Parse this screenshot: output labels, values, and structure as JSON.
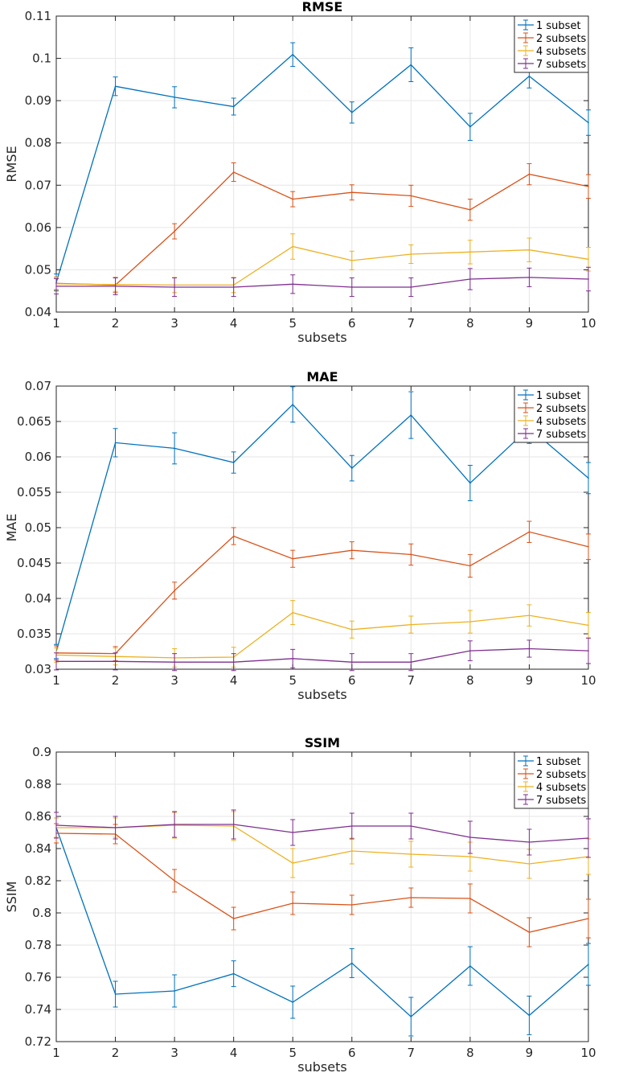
{
  "colors": {
    "series": [
      "#0072BD",
      "#D95319",
      "#EDB120",
      "#7E2F8E"
    ],
    "axis": "#262626",
    "grid": "#e6e6e6"
  },
  "chart_data": [
    {
      "type": "line",
      "title": "RMSE",
      "xlabel": "subsets",
      "ylabel": "RMSE",
      "x": [
        1,
        2,
        3,
        4,
        5,
        6,
        7,
        8,
        9,
        10
      ],
      "xlim": [
        1,
        10
      ],
      "ylim": [
        0.04,
        0.11
      ],
      "yticks": [
        0.04,
        0.05,
        0.06,
        0.07,
        0.08,
        0.09,
        0.1,
        0.11
      ],
      "ytick_labels": [
        "0.04",
        "0.05",
        "0.06",
        "0.07",
        "0.08",
        "0.09",
        "0.1",
        "0.11"
      ],
      "grid": true,
      "legend": "top-right",
      "series": [
        {
          "name": "1 subset",
          "values": [
            0.047,
            0.0934,
            0.0908,
            0.0886,
            0.1009,
            0.0872,
            0.0985,
            0.0838,
            0.0958,
            0.0848
          ],
          "errors": [
            0.002,
            0.0022,
            0.0025,
            0.002,
            0.0028,
            0.0025,
            0.004,
            0.0032,
            0.0028,
            0.003
          ]
        },
        {
          "name": "2 subsets",
          "values": [
            0.0468,
            0.0464,
            0.0591,
            0.0731,
            0.0667,
            0.0683,
            0.0675,
            0.0642,
            0.0726,
            0.0697
          ],
          "errors": [
            0.0015,
            0.0018,
            0.0018,
            0.0022,
            0.0018,
            0.0018,
            0.0025,
            0.0025,
            0.0025,
            0.0028
          ]
        },
        {
          "name": "4 subsets",
          "values": [
            0.0467,
            0.0465,
            0.0464,
            0.0464,
            0.0555,
            0.0522,
            0.0537,
            0.0542,
            0.0547,
            0.0525
          ],
          "errors": [
            0.0015,
            0.0016,
            0.0018,
            0.0018,
            0.003,
            0.0022,
            0.0022,
            0.0028,
            0.0028,
            0.0028
          ]
        },
        {
          "name": "7 subsets",
          "values": [
            0.0461,
            0.0461,
            0.0459,
            0.0459,
            0.0466,
            0.0459,
            0.0459,
            0.0478,
            0.0482,
            0.0478
          ],
          "errors": [
            0.0018,
            0.002,
            0.0022,
            0.0022,
            0.0022,
            0.0022,
            0.0022,
            0.0025,
            0.0022,
            0.0028
          ]
        }
      ]
    },
    {
      "type": "line",
      "title": "MAE",
      "xlabel": "subsets",
      "ylabel": "MAE",
      "x": [
        1,
        2,
        3,
        4,
        5,
        6,
        7,
        8,
        9,
        10
      ],
      "xlim": [
        1,
        10
      ],
      "ylim": [
        0.03,
        0.07
      ],
      "yticks": [
        0.03,
        0.035,
        0.04,
        0.045,
        0.05,
        0.055,
        0.06,
        0.065,
        0.07
      ],
      "ytick_labels": [
        "0.03",
        "0.035",
        "0.04",
        "0.045",
        "0.05",
        "0.055",
        "0.06",
        "0.065",
        "0.07"
      ],
      "grid": true,
      "legend": "top-right",
      "series": [
        {
          "name": "1 subset",
          "values": [
            0.0325,
            0.062,
            0.0612,
            0.0592,
            0.0674,
            0.0584,
            0.0659,
            0.0563,
            0.0641,
            0.057
          ],
          "errors": [
            0.001,
            0.002,
            0.0022,
            0.0015,
            0.0025,
            0.0018,
            0.0033,
            0.0025,
            0.0022,
            0.0022
          ]
        },
        {
          "name": "2 subsets",
          "values": [
            0.0323,
            0.0322,
            0.0411,
            0.0488,
            0.0456,
            0.0468,
            0.0462,
            0.0446,
            0.0494,
            0.0473
          ],
          "errors": [
            0.001,
            0.001,
            0.0012,
            0.0012,
            0.0012,
            0.0012,
            0.0015,
            0.0016,
            0.0015,
            0.0018
          ]
        },
        {
          "name": "4 subsets",
          "values": [
            0.032,
            0.0318,
            0.0316,
            0.0317,
            0.038,
            0.0356,
            0.0363,
            0.0367,
            0.0376,
            0.0362
          ],
          "errors": [
            0.001,
            0.0012,
            0.0013,
            0.0014,
            0.0017,
            0.0012,
            0.0012,
            0.0016,
            0.0015,
            0.0018
          ]
        },
        {
          "name": "7 subsets",
          "values": [
            0.0311,
            0.0311,
            0.031,
            0.031,
            0.0315,
            0.031,
            0.031,
            0.0326,
            0.0329,
            0.0326
          ],
          "errors": [
            0.0012,
            0.0012,
            0.0012,
            0.0012,
            0.0013,
            0.0012,
            0.0012,
            0.0014,
            0.0012,
            0.0018
          ]
        }
      ]
    },
    {
      "type": "line",
      "title": "SSIM",
      "xlabel": "subsets",
      "ylabel": "SSIM",
      "x": [
        1,
        2,
        3,
        4,
        5,
        6,
        7,
        8,
        9,
        10
      ],
      "xlim": [
        1,
        10
      ],
      "ylim": [
        0.72,
        0.9
      ],
      "yticks": [
        0.72,
        0.74,
        0.76,
        0.78,
        0.8,
        0.82,
        0.84,
        0.86,
        0.88,
        0.9
      ],
      "ytick_labels": [
        "0.72",
        "0.74",
        "0.76",
        "0.78",
        "0.8",
        "0.82",
        "0.84",
        "0.86",
        "0.88",
        "0.9"
      ],
      "grid": true,
      "legend": "top-right",
      "series": [
        {
          "name": "1 subset",
          "values": [
            0.853,
            0.7495,
            0.7515,
            0.7622,
            0.7445,
            0.7688,
            0.7355,
            0.767,
            0.7363,
            0.768
          ],
          "errors": [
            0.006,
            0.008,
            0.01,
            0.008,
            0.01,
            0.009,
            0.012,
            0.012,
            0.012,
            0.013
          ]
        },
        {
          "name": "2 subsets",
          "values": [
            0.8495,
            0.849,
            0.82,
            0.7965,
            0.806,
            0.805,
            0.8095,
            0.809,
            0.788,
            0.7965
          ],
          "errors": [
            0.006,
            0.006,
            0.007,
            0.007,
            0.007,
            0.006,
            0.006,
            0.009,
            0.009,
            0.012
          ]
        },
        {
          "name": "4 subsets",
          "values": [
            0.853,
            0.853,
            0.8545,
            0.854,
            0.831,
            0.8385,
            0.8365,
            0.835,
            0.8305,
            0.835
          ],
          "errors": [
            0.006,
            0.006,
            0.008,
            0.009,
            0.009,
            0.008,
            0.008,
            0.009,
            0.009,
            0.011
          ]
        },
        {
          "name": "7 subsets",
          "values": [
            0.8545,
            0.853,
            0.855,
            0.855,
            0.85,
            0.854,
            0.854,
            0.847,
            0.844,
            0.8465
          ],
          "errors": [
            0.008,
            0.007,
            0.008,
            0.009,
            0.008,
            0.008,
            0.008,
            0.01,
            0.008,
            0.012
          ]
        }
      ]
    }
  ]
}
